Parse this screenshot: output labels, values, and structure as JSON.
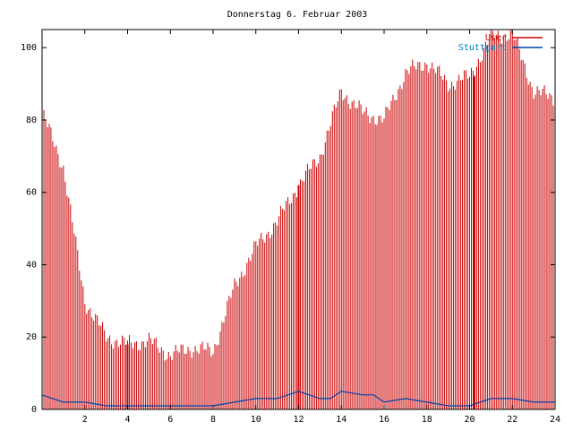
{
  "chart_data": {
    "type": "bar",
    "title": "Donnerstag 6. Februar 2003",
    "xlabel": "",
    "ylabel": "",
    "xlim": [
      0,
      24
    ],
    "ylim": [
      0,
      105
    ],
    "x_ticks": [
      2,
      4,
      6,
      8,
      10,
      12,
      14,
      16,
      18,
      20,
      22,
      24
    ],
    "y_ticks": [
      0,
      20,
      40,
      60,
      80,
      100
    ],
    "grid": false,
    "legend_position": "top-right",
    "series": [
      {
        "name": "User",
        "color": "#cc0000",
        "style": "impulses",
        "x": [
          0,
          1,
          2,
          3,
          4,
          5,
          6,
          7,
          8,
          9,
          10,
          11,
          12,
          13,
          14,
          15,
          16,
          17,
          18,
          19,
          20,
          21,
          22,
          23,
          24
        ],
        "y": [
          82,
          67,
          30,
          20,
          18,
          19,
          15,
          17,
          16,
          34,
          45,
          52,
          62,
          70,
          88,
          82,
          80,
          93,
          96,
          90,
          92,
          103,
          104,
          88,
          86
        ],
        "spikes": [
          {
            "x": 4.0,
            "y": 18
          },
          {
            "x": 12.0,
            "y": 62
          },
          {
            "x": 20.2,
            "y": 92
          }
        ]
      },
      {
        "name": "Stuttgart",
        "color": "#0044aa",
        "style": "lines",
        "x": [
          0,
          0.5,
          1,
          2,
          3,
          4,
          5,
          6,
          7,
          8,
          9,
          10,
          11,
          11.5,
          12,
          12.5,
          13,
          13.5,
          14,
          15,
          15.5,
          16,
          17,
          18,
          19,
          20,
          21,
          22,
          23,
          24
        ],
        "y": [
          4,
          3,
          2,
          2,
          1,
          1,
          1,
          1,
          1,
          1,
          2,
          3,
          3,
          4,
          5,
          4,
          3,
          3,
          5,
          4,
          4,
          2,
          3,
          2,
          1,
          1,
          3,
          3,
          2,
          2
        ]
      }
    ]
  }
}
